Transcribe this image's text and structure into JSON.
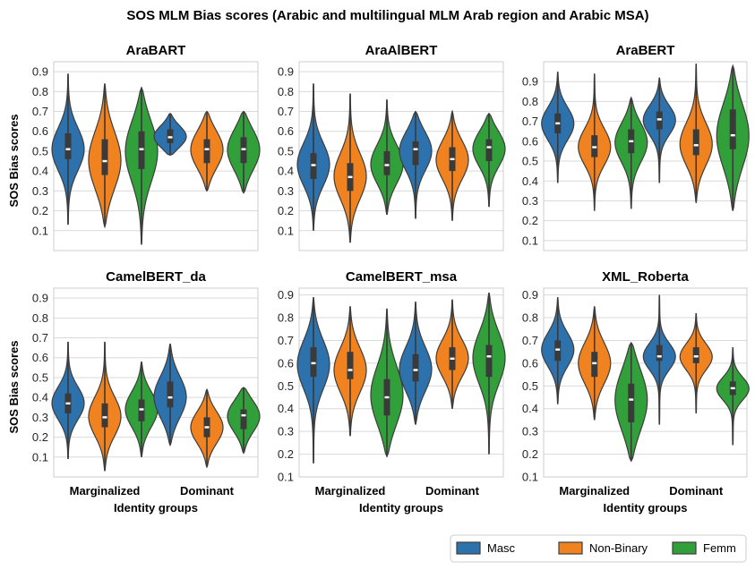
{
  "chart_data": {
    "type": "violin",
    "title": "SOS MLM Bias scores (Arabic and multilingual MLM Arab region and Arabic MSA)",
    "ylabel": "SOS Bias scores",
    "xlabel": "Identity groups",
    "categories": [
      "Marginalized",
      "Dominant"
    ],
    "legend": {
      "placement": "bottom-right",
      "entries": [
        {
          "name": "Masc",
          "color": "#2e72ad"
        },
        {
          "name": "Non-Binary",
          "color": "#f0831f"
        },
        {
          "name": "Femm",
          "color": "#32a03a"
        }
      ]
    },
    "grid": true,
    "panels": [
      {
        "title": "AraBART",
        "ylim": [
          0.0,
          0.95
        ],
        "yticks": [
          "0.1",
          "0.2",
          "0.3",
          "0.4",
          "0.5",
          "0.6",
          "0.7",
          "0.8",
          "0.9"
        ],
        "violins": [
          {
            "category": "Marginalized",
            "series": "Masc",
            "min": 0.13,
            "max": 0.89,
            "q1": 0.46,
            "median": 0.51,
            "q3": 0.59
          },
          {
            "category": "Marginalized",
            "series": "Non-Binary",
            "min": 0.12,
            "max": 0.84,
            "q1": 0.38,
            "median": 0.45,
            "q3": 0.56
          },
          {
            "category": "Marginalized",
            "series": "Femm",
            "min": 0.03,
            "max": 0.82,
            "q1": 0.41,
            "median": 0.51,
            "q3": 0.6
          },
          {
            "category": "Dominant",
            "series": "Masc",
            "min": 0.48,
            "max": 0.69,
            "q1": 0.54,
            "median": 0.57,
            "q3": 0.61
          },
          {
            "category": "Dominant",
            "series": "Non-Binary",
            "min": 0.3,
            "max": 0.7,
            "q1": 0.44,
            "median": 0.51,
            "q3": 0.56
          },
          {
            "category": "Dominant",
            "series": "Femm",
            "min": 0.29,
            "max": 0.7,
            "q1": 0.44,
            "median": 0.51,
            "q3": 0.57
          }
        ]
      },
      {
        "title": "AraAlBERT",
        "ylim": [
          0.0,
          0.95
        ],
        "yticks": [
          "0.1",
          "0.2",
          "0.3",
          "0.4",
          "0.5",
          "0.6",
          "0.7",
          "0.8",
          "0.9"
        ],
        "violins": [
          {
            "category": "Marginalized",
            "series": "Masc",
            "min": 0.1,
            "max": 0.84,
            "q1": 0.36,
            "median": 0.43,
            "q3": 0.49
          },
          {
            "category": "Marginalized",
            "series": "Non-Binary",
            "min": 0.04,
            "max": 0.79,
            "q1": 0.3,
            "median": 0.37,
            "q3": 0.44
          },
          {
            "category": "Marginalized",
            "series": "Femm",
            "min": 0.18,
            "max": 0.76,
            "q1": 0.38,
            "median": 0.43,
            "q3": 0.5
          },
          {
            "category": "Dominant",
            "series": "Masc",
            "min": 0.16,
            "max": 0.7,
            "q1": 0.43,
            "median": 0.51,
            "q3": 0.55
          },
          {
            "category": "Dominant",
            "series": "Non-Binary",
            "min": 0.15,
            "max": 0.7,
            "q1": 0.4,
            "median": 0.46,
            "q3": 0.52
          },
          {
            "category": "Dominant",
            "series": "Femm",
            "min": 0.22,
            "max": 0.69,
            "q1": 0.45,
            "median": 0.52,
            "q3": 0.56
          }
        ]
      },
      {
        "title": "AraBERT",
        "ylim": [
          0.05,
          1.0
        ],
        "yticks": [
          "0.1",
          "0.2",
          "0.3",
          "0.4",
          "0.5",
          "0.6",
          "0.7",
          "0.8",
          "0.9"
        ],
        "violins": [
          {
            "category": "Marginalized",
            "series": "Masc",
            "min": 0.39,
            "max": 0.95,
            "q1": 0.64,
            "median": 0.69,
            "q3": 0.74
          },
          {
            "category": "Marginalized",
            "series": "Non-Binary",
            "min": 0.25,
            "max": 0.94,
            "q1": 0.52,
            "median": 0.57,
            "q3": 0.63
          },
          {
            "category": "Marginalized",
            "series": "Femm",
            "min": 0.26,
            "max": 0.82,
            "q1": 0.54,
            "median": 0.6,
            "q3": 0.66
          },
          {
            "category": "Dominant",
            "series": "Masc",
            "min": 0.39,
            "max": 0.92,
            "q1": 0.66,
            "median": 0.71,
            "q3": 0.75
          },
          {
            "category": "Dominant",
            "series": "Non-Binary",
            "min": 0.29,
            "max": 0.99,
            "q1": 0.53,
            "median": 0.58,
            "q3": 0.66
          },
          {
            "category": "Dominant",
            "series": "Femm",
            "min": 0.25,
            "max": 0.98,
            "q1": 0.56,
            "median": 0.63,
            "q3": 0.76
          }
        ]
      },
      {
        "title": "CamelBERT_da",
        "ylim": [
          0.0,
          0.95
        ],
        "yticks": [
          "0.1",
          "0.2",
          "0.3",
          "0.4",
          "0.5",
          "0.6",
          "0.7",
          "0.8",
          "0.9"
        ],
        "violins": [
          {
            "category": "Marginalized",
            "series": "Masc",
            "min": 0.09,
            "max": 0.68,
            "q1": 0.32,
            "median": 0.37,
            "q3": 0.42
          },
          {
            "category": "Marginalized",
            "series": "Non-Binary",
            "min": 0.03,
            "max": 0.68,
            "q1": 0.25,
            "median": 0.3,
            "q3": 0.37
          },
          {
            "category": "Marginalized",
            "series": "Femm",
            "min": 0.1,
            "max": 0.58,
            "q1": 0.28,
            "median": 0.34,
            "q3": 0.39
          },
          {
            "category": "Dominant",
            "series": "Masc",
            "min": 0.16,
            "max": 0.67,
            "q1": 0.35,
            "median": 0.4,
            "q3": 0.48
          },
          {
            "category": "Dominant",
            "series": "Non-Binary",
            "min": 0.05,
            "max": 0.44,
            "q1": 0.2,
            "median": 0.25,
            "q3": 0.3
          },
          {
            "category": "Dominant",
            "series": "Femm",
            "min": 0.12,
            "max": 0.45,
            "q1": 0.24,
            "median": 0.31,
            "q3": 0.34
          }
        ]
      },
      {
        "title": "CamelBERT_msa",
        "ylim": [
          0.1,
          0.93
        ],
        "yticks": [
          "0.1",
          "0.2",
          "0.3",
          "0.4",
          "0.5",
          "0.6",
          "0.7",
          "0.8",
          "0.9"
        ],
        "violins": [
          {
            "category": "Marginalized",
            "series": "Masc",
            "min": 0.16,
            "max": 0.89,
            "q1": 0.54,
            "median": 0.6,
            "q3": 0.67
          },
          {
            "category": "Marginalized",
            "series": "Non-Binary",
            "min": 0.28,
            "max": 0.85,
            "q1": 0.53,
            "median": 0.57,
            "q3": 0.65
          },
          {
            "category": "Marginalized",
            "series": "Femm",
            "min": 0.19,
            "max": 0.84,
            "q1": 0.37,
            "median": 0.45,
            "q3": 0.53
          },
          {
            "category": "Dominant",
            "series": "Masc",
            "min": 0.33,
            "max": 0.87,
            "q1": 0.52,
            "median": 0.57,
            "q3": 0.64
          },
          {
            "category": "Dominant",
            "series": "Non-Binary",
            "min": 0.4,
            "max": 0.88,
            "q1": 0.57,
            "median": 0.62,
            "q3": 0.67
          },
          {
            "category": "Dominant",
            "series": "Femm",
            "min": 0.2,
            "max": 0.91,
            "q1": 0.54,
            "median": 0.63,
            "q3": 0.68
          }
        ]
      },
      {
        "title": "XML_Roberta",
        "ylim": [
          0.1,
          0.93
        ],
        "yticks": [
          "0.1",
          "0.2",
          "0.3",
          "0.4",
          "0.5",
          "0.6",
          "0.7",
          "0.8",
          "0.9"
        ],
        "violins": [
          {
            "category": "Marginalized",
            "series": "Masc",
            "min": 0.42,
            "max": 0.89,
            "q1": 0.61,
            "median": 0.66,
            "q3": 0.7
          },
          {
            "category": "Marginalized",
            "series": "Non-Binary",
            "min": 0.35,
            "max": 0.85,
            "q1": 0.54,
            "median": 0.6,
            "q3": 0.65
          },
          {
            "category": "Marginalized",
            "series": "Femm",
            "min": 0.17,
            "max": 0.69,
            "q1": 0.34,
            "median": 0.44,
            "q3": 0.51
          },
          {
            "category": "Dominant",
            "series": "Masc",
            "min": 0.33,
            "max": 0.9,
            "q1": 0.61,
            "median": 0.63,
            "q3": 0.68
          },
          {
            "category": "Dominant",
            "series": "Non-Binary",
            "min": 0.38,
            "max": 0.82,
            "q1": 0.6,
            "median": 0.63,
            "q3": 0.67
          },
          {
            "category": "Dominant",
            "series": "Femm",
            "min": 0.24,
            "max": 0.67,
            "q1": 0.46,
            "median": 0.49,
            "q3": 0.52
          }
        ]
      }
    ]
  }
}
